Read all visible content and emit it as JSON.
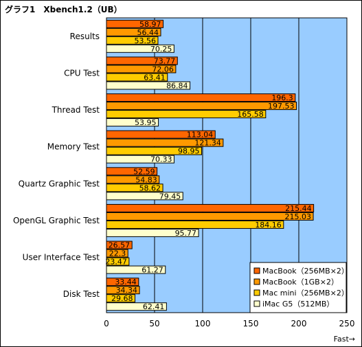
{
  "chart_data": {
    "type": "bar",
    "orientation": "horizontal",
    "title": "グラフ1　Xbench1.2（UB）",
    "xlabel": "Fast→",
    "ylabel": "",
    "xlim": [
      0,
      250
    ],
    "xticks": [
      0,
      50,
      100,
      150,
      200,
      250
    ],
    "grid": true,
    "legend_position": "bottom-right",
    "plot_background": "#99ccff",
    "categories": [
      "Results",
      "CPU Test",
      "Thread Test",
      "Memory Test",
      "Quartz Graphic Test",
      "OpenGL Graphic Test",
      "User Interface Test",
      "Disk Test"
    ],
    "series": [
      {
        "name": "MacBook（256MB×2）",
        "color": "#ff6600",
        "values": [
          58.97,
          73.77,
          196.3,
          113.04,
          52.59,
          215.44,
          26.57,
          33.44
        ]
      },
      {
        "name": "MacBook（1GB×2）",
        "color": "#ff9900",
        "values": [
          56.44,
          72.06,
          197.53,
          121.34,
          54.83,
          215.03,
          22.3,
          34.34
        ]
      },
      {
        "name": "Mac mini（256MB×2）",
        "color": "#ffcc00",
        "values": [
          53.56,
          63.41,
          165.58,
          98.95,
          58.62,
          184.16,
          23.47,
          29.68
        ]
      },
      {
        "name": "iMac G5（512MB）",
        "color": "#ffffcc",
        "values": [
          70.25,
          86.84,
          53.95,
          70.33,
          79.45,
          95.77,
          61.27,
          62.41
        ]
      }
    ],
    "labels": [
      [
        "58.97",
        "73.77",
        "196.3",
        "113.04",
        "52.59",
        "215.44",
        "26.57",
        "33.44"
      ],
      [
        "56.44",
        "72.06",
        "197.53",
        "121.34",
        "54.83",
        "215.03",
        "22.3",
        "34.34"
      ],
      [
        "53.56",
        "63.41",
        "165.58",
        "98.95",
        "58.62",
        "184.16",
        "23.47",
        "29.68"
      ],
      [
        "70.25",
        "86.84",
        "53.95",
        "70.33",
        "79.45",
        "95.77",
        "61.27",
        "62.41"
      ]
    ]
  }
}
